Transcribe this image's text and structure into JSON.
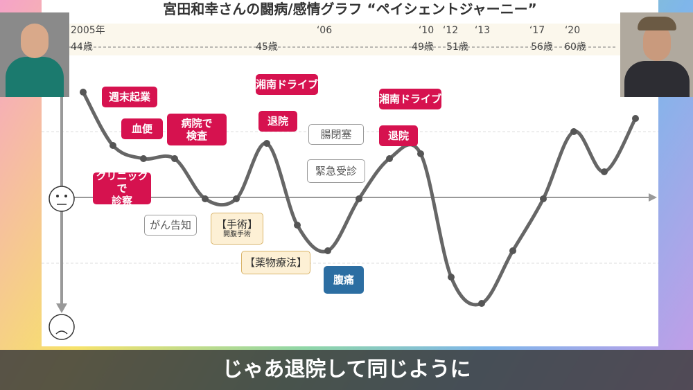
{
  "slide": {
    "title": "宮田和幸さんの闘病/感情グラフ “ペイシェントジャーニー”",
    "years": [
      "2005年",
      "‘06",
      "‘10",
      "‘12",
      "‘13",
      "‘17",
      "‘20"
    ],
    "ages": [
      "44歳",
      "45歳",
      "49歳",
      "51歳",
      "56歳",
      "60歳"
    ],
    "callouts": [
      {
        "lines": [
          "週末起業"
        ]
      },
      {
        "lines": [
          "血便"
        ]
      },
      {
        "lines": [
          "病院で",
          "検査"
        ]
      },
      {
        "lines": [
          "クリニックで",
          "診察"
        ]
      },
      {
        "lines": [
          "湘南ドライブ"
        ]
      },
      {
        "lines": [
          "退院"
        ]
      },
      {
        "lines": [
          "がん告知"
        ]
      },
      {
        "lines": [
          "【手術】",
          "開腹手術"
        ]
      },
      {
        "lines": [
          "腸閉塞"
        ]
      },
      {
        "lines": [
          "緊急受診"
        ]
      },
      {
        "lines": [
          "【薬物療法】"
        ]
      },
      {
        "lines": [
          "腹痛"
        ]
      },
      {
        "lines": [
          "湘南ドライブ"
        ]
      },
      {
        "lines": [
          "退院"
        ]
      }
    ]
  },
  "caption": "じゃあ退院して同じように"
}
